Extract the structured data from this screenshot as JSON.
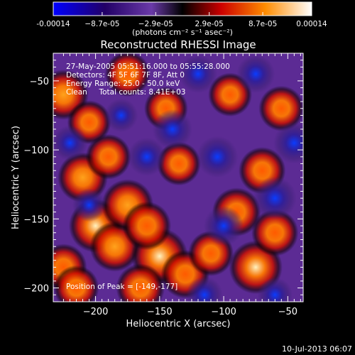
{
  "chart_data": {
    "type": "heatmap",
    "title": "Reconstructed RHESSI Image",
    "xlabel": "Heliocentric X (arcsec)",
    "ylabel": "Heliocentric Y (arcsec)",
    "xlim": [
      -233,
      -38
    ],
    "ylim": [
      -210,
      -30
    ],
    "x_ticks": [
      -200,
      -150,
      -100,
      -50
    ],
    "y_ticks": [
      -50,
      -100,
      -150,
      -200
    ],
    "colorbar": {
      "range": [
        -0.00014,
        0.00014
      ],
      "tick_values": [
        -0.00014,
        -8.7e-05,
        -2.9e-05,
        2.9e-05,
        8.7e-05,
        0.00014
      ],
      "tick_labels": [
        "-0.00014",
        "−8.7e-05",
        "−2.9e-05",
        "2.9e-05",
        "8.7e-05",
        "0.00014"
      ],
      "unit_label": "(photons cm⁻² s⁻¹ asec⁻²)",
      "colors": [
        "#0000ff",
        "#220066",
        "#6a3aa8",
        "#000000",
        "#cc0000",
        "#ff8c00",
        "#ffffff"
      ]
    },
    "annotations": [
      "27-May-2005 05:51:16.000 to 05:55:28.000",
      "Detectors: 4F 5F 6F 7F 8F, Att 0",
      "Energy Range: 25.0 - 50.0 keV",
      "Clean     Total counts: 8.41E+03"
    ],
    "peak_label": "Position of Peak = [-149,-177]",
    "peak": [
      -149,
      -177
    ],
    "blobs": [
      {
        "x": -200,
        "y": -155,
        "v": 0.00012
      },
      {
        "x": -185,
        "y": -170,
        "v": 0.0001
      },
      {
        "x": -175,
        "y": -140,
        "v": 0.00011
      },
      {
        "x": -150,
        "y": -177,
        "v": 0.00014
      },
      {
        "x": -160,
        "y": -155,
        "v": 9e-05
      },
      {
        "x": -210,
        "y": -120,
        "v": 0.0001
      },
      {
        "x": -190,
        "y": -105,
        "v": 7e-05
      },
      {
        "x": -225,
        "y": -185,
        "v": 8e-05
      },
      {
        "x": -215,
        "y": -200,
        "v": 7e-05
      },
      {
        "x": -165,
        "y": -200,
        "v": 9e-05
      },
      {
        "x": -130,
        "y": -190,
        "v": 9e-05
      },
      {
        "x": -75,
        "y": -185,
        "v": 0.00012
      },
      {
        "x": -110,
        "y": -175,
        "v": 7e-05
      },
      {
        "x": -60,
        "y": -160,
        "v": 8e-05
      },
      {
        "x": -90,
        "y": -145,
        "v": 9e-05
      },
      {
        "x": -70,
        "y": -115,
        "v": 8e-05
      },
      {
        "x": -55,
        "y": -70,
        "v": 7e-05
      },
      {
        "x": -95,
        "y": -60,
        "v": 6e-05
      },
      {
        "x": -145,
        "y": -70,
        "v": 6e-05
      },
      {
        "x": -175,
        "y": -45,
        "v": 7e-05
      },
      {
        "x": -225,
        "y": -60,
        "v": 0.0001
      },
      {
        "x": -135,
        "y": -110,
        "v": 6e-05
      },
      {
        "x": -205,
        "y": -80,
        "v": 6e-05
      },
      {
        "x": -140,
        "y": -85,
        "v": -8e-05
      },
      {
        "x": -120,
        "y": -45,
        "v": -7e-05
      },
      {
        "x": -160,
        "y": -105,
        "v": -7e-05
      },
      {
        "x": -105,
        "y": -105,
        "v": -9e-05
      },
      {
        "x": -75,
        "y": -45,
        "v": -7e-05
      },
      {
        "x": -60,
        "y": -135,
        "v": -0.0001
      },
      {
        "x": -45,
        "y": -95,
        "v": -9e-05
      },
      {
        "x": -100,
        "y": -155,
        "v": -8e-05
      },
      {
        "x": -115,
        "y": -205,
        "v": -6e-05
      },
      {
        "x": -60,
        "y": -205,
        "v": -5e-05
      },
      {
        "x": -205,
        "y": -140,
        "v": -4e-05
      },
      {
        "x": -220,
        "y": -95,
        "v": -5e-05
      },
      {
        "x": -180,
        "y": -75,
        "v": -4e-05
      }
    ]
  },
  "footer": {
    "timestamp": "10-Jul-2013 06:07"
  }
}
